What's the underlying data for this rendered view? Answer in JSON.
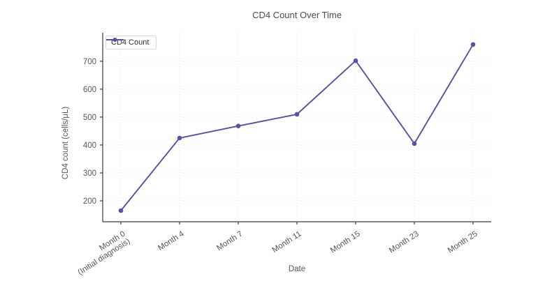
{
  "figure": {
    "title": "CD4 Count Over Time",
    "xlabel": "Date",
    "ylabel": "CD4 count (cells/μL)"
  },
  "legend": {
    "label": "CD4 Count"
  },
  "chart_data": {
    "type": "line",
    "title": "CD4 Count Over Time",
    "xlabel": "Date",
    "ylabel": "CD4 count (cells/μL)",
    "categories": [
      "Month 0\n(Initial diagnosis)",
      "Month 4",
      "Month 7",
      "Month 11",
      "Month 15",
      "Month 23",
      "Month 25"
    ],
    "series": [
      {
        "name": "CD4 Count",
        "color": "#5d4da4",
        "values": [
          165,
          425,
          468,
          510,
          702,
          405,
          760
        ]
      }
    ],
    "yticks": [
      200,
      300,
      400,
      500,
      600,
      700
    ],
    "ylim": [
      125,
      802
    ],
    "grid": true,
    "grid_style": "dotted",
    "legend_position": "upper left",
    "marker": "circle",
    "colors": {
      "accent": "#5d4da4",
      "grid": "#e4e4e4",
      "spine": "#3c3c3c",
      "tick_label": "#5a5a5a",
      "title": "#4c4c55"
    }
  }
}
